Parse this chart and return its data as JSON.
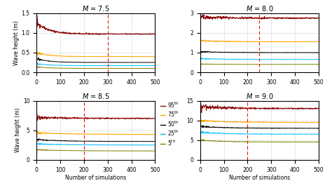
{
  "panels": [
    {
      "title": "M = 7.5",
      "ylim": [
        0,
        1.5
      ],
      "yticks": [
        0,
        0.5,
        1.0,
        1.5
      ],
      "vline": 300,
      "final_values": [
        0.97,
        0.4,
        0.25,
        0.17,
        0.1
      ],
      "peak_values": [
        1.28,
        0.5,
        0.35,
        0.22,
        0.14
      ],
      "peak_at": 25
    },
    {
      "title": "M = 8.0",
      "ylim": [
        0,
        3
      ],
      "yticks": [
        0,
        1,
        2,
        3
      ],
      "vline": 250,
      "final_values": [
        2.75,
        1.55,
        1.0,
        0.65,
        0.4
      ],
      "peak_values": [
        2.8,
        1.6,
        1.05,
        0.7,
        0.42
      ],
      "peak_at": 50
    },
    {
      "title": "M = 8.5",
      "ylim": [
        0,
        10
      ],
      "yticks": [
        0,
        5,
        10
      ],
      "vline": 200,
      "final_values": [
        7.0,
        4.3,
        3.1,
        2.5,
        1.5
      ],
      "peak_values": [
        7.2,
        4.6,
        3.4,
        2.7,
        1.7
      ],
      "peak_at": 60
    },
    {
      "title": "M = 9.0",
      "ylim": [
        0,
        15
      ],
      "yticks": [
        0,
        5,
        10,
        15
      ],
      "vline": 200,
      "final_values": [
        13.0,
        9.5,
        8.0,
        6.5,
        4.5
      ],
      "peak_values": [
        13.5,
        10.0,
        8.5,
        7.0,
        5.0
      ],
      "peak_at": 50
    }
  ],
  "colors": [
    "#8B0000",
    "#FFA500",
    "#000000",
    "#00BFFF",
    "#808000"
  ],
  "legend_labels": [
    "95th",
    "75th",
    "50th",
    "25th",
    "5th"
  ],
  "xlabel": "Number of simulations",
  "ylabel": "Wave height (m)",
  "xlim": [
    0,
    500
  ],
  "n_sims": 500
}
